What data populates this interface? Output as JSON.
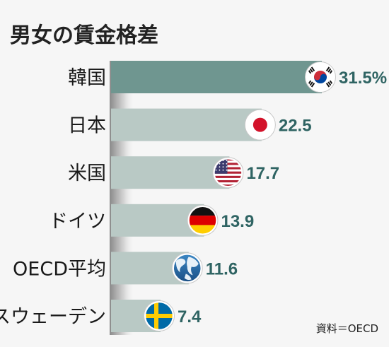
{
  "chart_data": {
    "type": "bar",
    "orientation": "horizontal",
    "title": "男女の賃金格差",
    "categories": [
      "韓国",
      "日本",
      "米国",
      "ドイツ",
      "OECD平均",
      "スウェーデン"
    ],
    "values": [
      31.5,
      22.5,
      17.7,
      13.9,
      11.6,
      7.4
    ],
    "value_labels": [
      "31.5%",
      "22.5",
      "17.7",
      "13.9",
      "11.6",
      "7.4"
    ],
    "flag_icons": [
      "flag-korea-icon",
      "flag-japan-icon",
      "flag-usa-icon",
      "flag-germany-icon",
      "globe-icon",
      "flag-sweden-icon"
    ],
    "source": "資料＝OECD",
    "colors": {
      "highlight_bar": "#6f9690",
      "bar": "#b9c9c5",
      "value_text": "#2f6463",
      "title_text": "#222222"
    }
  }
}
